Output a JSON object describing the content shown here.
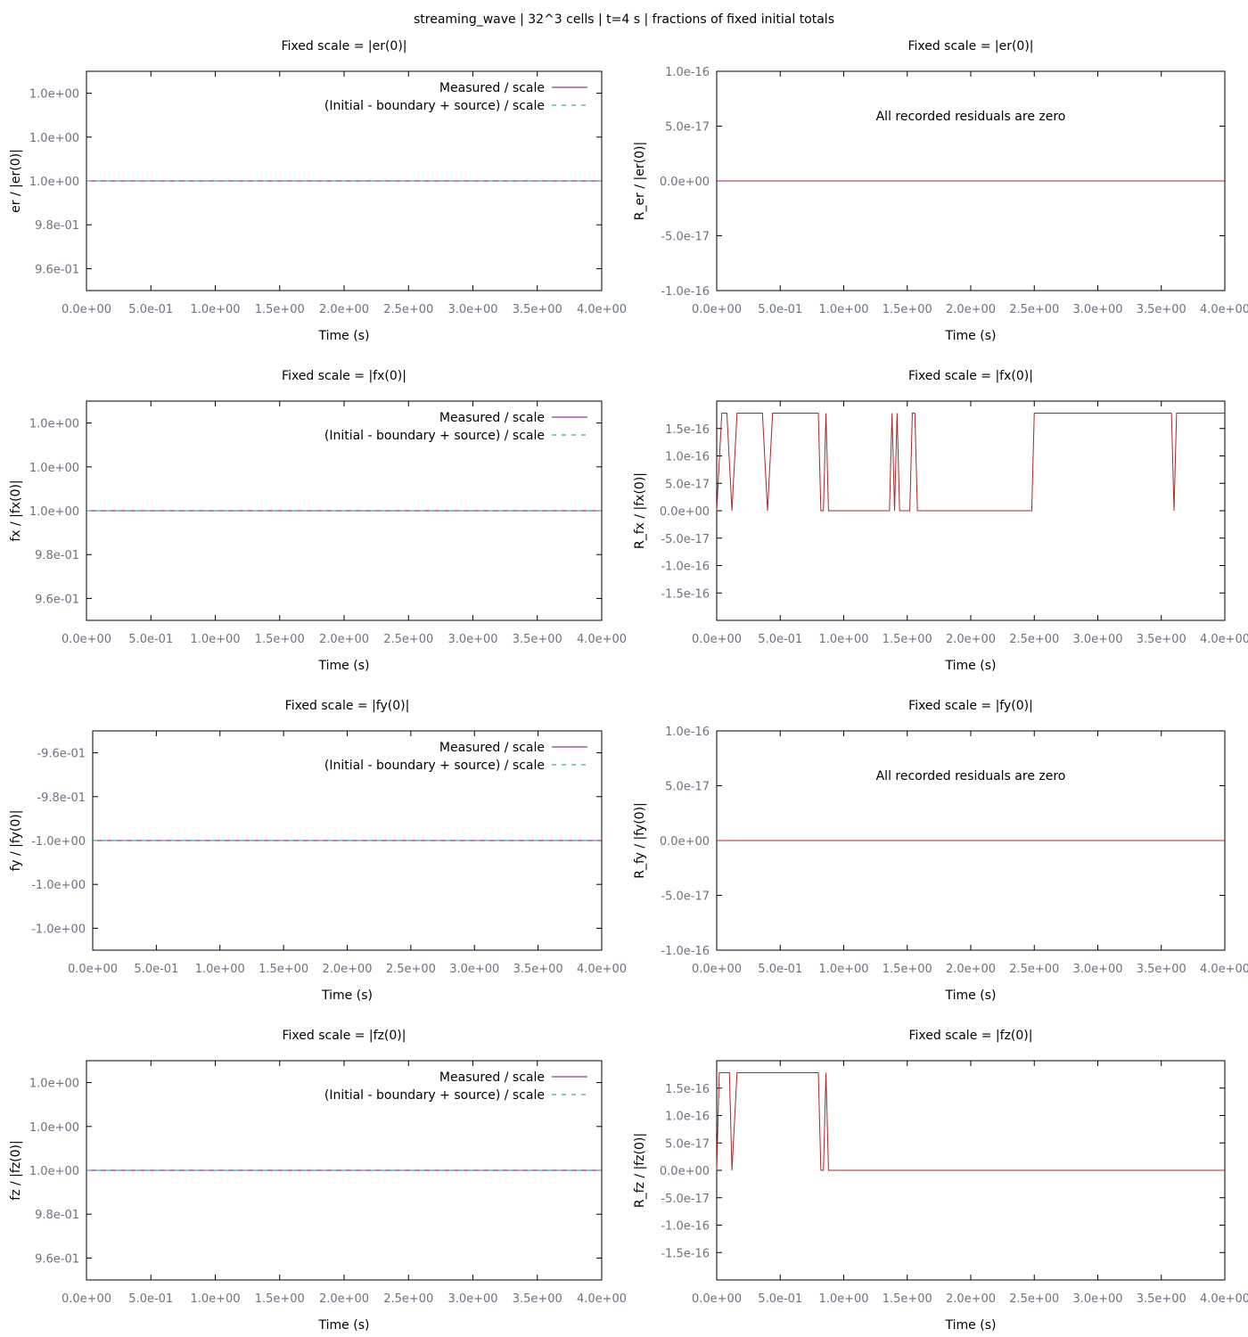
{
  "suptitle": "streaming_wave | 32^3 cells | t=4 s | fractions of fixed initial totals",
  "colors": {
    "measured": "#800080",
    "expected": "#009e73",
    "residual": "#a52a2a",
    "frame": "#000000",
    "tick_text": "#6b7280"
  },
  "chart_data": [
    {
      "type": "line",
      "title": "Fixed scale = |er(0)|",
      "xlabel": "Time (s)",
      "ylabel": "er / |er(0)|",
      "xlim": [
        0,
        4
      ],
      "ylim": [
        0.95,
        1.05
      ],
      "x_ticks": [
        "0.0e+00",
        "5.0e-01",
        "1.0e+00",
        "1.5e+00",
        "2.0e+00",
        "2.5e+00",
        "3.0e+00",
        "3.5e+00",
        "4.0e+00"
      ],
      "y_ticks": [
        {
          "value": 1.04,
          "label": "1.0e+00"
        },
        {
          "value": 1.02,
          "label": "1.0e+00"
        },
        {
          "value": 1.0,
          "label": "1.0e+00"
        },
        {
          "value": 0.98,
          "label": "9.8e-01"
        },
        {
          "value": 0.96,
          "label": "9.6e-01"
        }
      ],
      "legend_position": "top-right",
      "series": [
        {
          "name": "Measured / scale",
          "style": "solid",
          "x": [
            0,
            4
          ],
          "y": [
            1,
            1
          ]
        },
        {
          "name": "(Initial - boundary + source) / scale",
          "style": "dashed",
          "x": [
            0,
            4
          ],
          "y": [
            1,
            1
          ]
        }
      ]
    },
    {
      "type": "line",
      "title": "Fixed scale = |er(0)|",
      "xlabel": "Time (s)",
      "ylabel": "R_er / |er(0)|",
      "xlim": [
        0,
        4
      ],
      "ylim": [
        -1e-16,
        1e-16
      ],
      "x_ticks": [
        "0.0e+00",
        "5.0e-01",
        "1.0e+00",
        "1.5e+00",
        "2.0e+00",
        "2.5e+00",
        "3.0e+00",
        "3.5e+00",
        "4.0e+00"
      ],
      "y_ticks": [
        {
          "value": 1e-16,
          "label": "1.0e-16"
        },
        {
          "value": 5e-17,
          "label": "5.0e-17"
        },
        {
          "value": 0,
          "label": "0.0e+00"
        },
        {
          "value": -5e-17,
          "label": "-5.0e-17"
        },
        {
          "value": -1e-16,
          "label": "-1.0e-16"
        }
      ],
      "annotation": "All recorded residuals are zero",
      "series": [
        {
          "style": "residual",
          "x": [
            0,
            4
          ],
          "y": [
            0,
            0
          ]
        }
      ]
    },
    {
      "type": "line",
      "title": "Fixed scale = |fx(0)|",
      "xlabel": "Time (s)",
      "ylabel": "fx / |fx(0)|",
      "xlim": [
        0,
        4
      ],
      "ylim": [
        0.95,
        1.05
      ],
      "x_ticks": [
        "0.0e+00",
        "5.0e-01",
        "1.0e+00",
        "1.5e+00",
        "2.0e+00",
        "2.5e+00",
        "3.0e+00",
        "3.5e+00",
        "4.0e+00"
      ],
      "y_ticks": [
        {
          "value": 1.04,
          "label": "1.0e+00"
        },
        {
          "value": 1.02,
          "label": "1.0e+00"
        },
        {
          "value": 1.0,
          "label": "1.0e+00"
        },
        {
          "value": 0.98,
          "label": "9.8e-01"
        },
        {
          "value": 0.96,
          "label": "9.6e-01"
        }
      ],
      "legend_position": "top-right",
      "series": [
        {
          "name": "Measured / scale",
          "style": "solid",
          "x": [
            0,
            4
          ],
          "y": [
            1,
            1
          ]
        },
        {
          "name": "(Initial - boundary + source) / scale",
          "style": "dashed",
          "x": [
            0,
            4
          ],
          "y": [
            1,
            1
          ]
        }
      ]
    },
    {
      "type": "line",
      "title": "Fixed scale = |fx(0)|",
      "xlabel": "Time (s)",
      "ylabel": "R_fx / |fx(0)|",
      "xlim": [
        0,
        4
      ],
      "ylim": [
        -2e-16,
        2e-16
      ],
      "x_ticks": [
        "0.0e+00",
        "5.0e-01",
        "1.0e+00",
        "1.5e+00",
        "2.0e+00",
        "2.5e+00",
        "3.0e+00",
        "3.5e+00",
        "4.0e+00"
      ],
      "y_ticks": [
        {
          "value": 1.5e-16,
          "label": "1.5e-16"
        },
        {
          "value": 1e-16,
          "label": "1.0e-16"
        },
        {
          "value": 5e-17,
          "label": "5.0e-17"
        },
        {
          "value": 0,
          "label": "0.0e+00"
        },
        {
          "value": -5e-17,
          "label": "-5.0e-17"
        },
        {
          "value": -1e-16,
          "label": "-1.0e-16"
        },
        {
          "value": -1.5e-16,
          "label": "-1.5e-16"
        }
      ],
      "series": [
        {
          "style": "residual",
          "x": [
            0,
            0.04,
            0.08,
            0.12,
            0.16,
            0.2,
            0.36,
            0.4,
            0.44,
            0.8,
            0.82,
            0.84,
            0.86,
            0.88,
            0.92,
            1.36,
            1.38,
            1.4,
            1.42,
            1.44,
            1.46,
            1.52,
            1.54,
            1.56,
            1.58,
            1.6,
            2.48,
            2.5,
            3.58,
            3.6,
            3.62,
            3.64,
            4.0
          ],
          "y": [
            0,
            1.78e-16,
            1.78e-16,
            0,
            1.78e-16,
            1.78e-16,
            1.78e-16,
            0,
            1.78e-16,
            1.78e-16,
            0,
            0,
            1.78e-16,
            0,
            0,
            0,
            1.78e-16,
            0,
            1.78e-16,
            0,
            0,
            0,
            1.78e-16,
            1.78e-16,
            0,
            0,
            0,
            1.78e-16,
            1.78e-16,
            0,
            1.78e-16,
            1.78e-16,
            1.78e-16
          ]
        }
      ]
    },
    {
      "type": "line",
      "title": "Fixed scale = |fy(0)|",
      "xlabel": "Time (s)",
      "ylabel": "fy / |fy(0)|",
      "xlim": [
        0,
        4
      ],
      "ylim": [
        -1.05,
        -0.95
      ],
      "x_ticks": [
        "0.0e+00",
        "5.0e-01",
        "1.0e+00",
        "1.5e+00",
        "2.0e+00",
        "2.5e+00",
        "3.0e+00",
        "3.5e+00",
        "4.0e+00"
      ],
      "y_ticks": [
        {
          "value": -0.96,
          "label": "-9.6e-01"
        },
        {
          "value": -0.98,
          "label": "-9.8e-01"
        },
        {
          "value": -1.0,
          "label": "-1.0e+00"
        },
        {
          "value": -1.02,
          "label": "-1.0e+00"
        },
        {
          "value": -1.04,
          "label": "-1.0e+00"
        }
      ],
      "legend_position": "top-right",
      "series": [
        {
          "name": "Measured / scale",
          "style": "solid",
          "x": [
            0,
            4
          ],
          "y": [
            -1,
            -1
          ]
        },
        {
          "name": "(Initial - boundary + source) / scale",
          "style": "dashed",
          "x": [
            0,
            4
          ],
          "y": [
            -1,
            -1
          ]
        }
      ]
    },
    {
      "type": "line",
      "title": "Fixed scale = |fy(0)|",
      "xlabel": "Time (s)",
      "ylabel": "R_fy / |fy(0)|",
      "xlim": [
        0,
        4
      ],
      "ylim": [
        -1e-16,
        1e-16
      ],
      "x_ticks": [
        "0.0e+00",
        "5.0e-01",
        "1.0e+00",
        "1.5e+00",
        "2.0e+00",
        "2.5e+00",
        "3.0e+00",
        "3.5e+00",
        "4.0e+00"
      ],
      "y_ticks": [
        {
          "value": 1e-16,
          "label": "1.0e-16"
        },
        {
          "value": 5e-17,
          "label": "5.0e-17"
        },
        {
          "value": 0,
          "label": "0.0e+00"
        },
        {
          "value": -5e-17,
          "label": "-5.0e-17"
        },
        {
          "value": -1e-16,
          "label": "-1.0e-16"
        }
      ],
      "annotation": "All recorded residuals are zero",
      "series": [
        {
          "style": "residual",
          "x": [
            0,
            4
          ],
          "y": [
            0,
            0
          ]
        }
      ]
    },
    {
      "type": "line",
      "title": "Fixed scale = |fz(0)|",
      "xlabel": "Time (s)",
      "ylabel": "fz / |fz(0)|",
      "xlim": [
        0,
        4
      ],
      "ylim": [
        0.95,
        1.05
      ],
      "x_ticks": [
        "0.0e+00",
        "5.0e-01",
        "1.0e+00",
        "1.5e+00",
        "2.0e+00",
        "2.5e+00",
        "3.0e+00",
        "3.5e+00",
        "4.0e+00"
      ],
      "y_ticks": [
        {
          "value": 1.04,
          "label": "1.0e+00"
        },
        {
          "value": 1.02,
          "label": "1.0e+00"
        },
        {
          "value": 1.0,
          "label": "1.0e+00"
        },
        {
          "value": 0.98,
          "label": "9.8e-01"
        },
        {
          "value": 0.96,
          "label": "9.6e-01"
        }
      ],
      "legend_position": "top-right",
      "series": [
        {
          "name": "Measured / scale",
          "style": "solid",
          "x": [
            0,
            4
          ],
          "y": [
            1,
            1
          ]
        },
        {
          "name": "(Initial - boundary + source) / scale",
          "style": "dashed",
          "x": [
            0,
            4
          ],
          "y": [
            1,
            1
          ]
        }
      ]
    },
    {
      "type": "line",
      "title": "Fixed scale = |fz(0)|",
      "xlabel": "Time (s)",
      "ylabel": "R_fz / |fz(0)|",
      "xlim": [
        0,
        4
      ],
      "ylim": [
        -2e-16,
        2e-16
      ],
      "x_ticks": [
        "0.0e+00",
        "5.0e-01",
        "1.0e+00",
        "1.5e+00",
        "2.0e+00",
        "2.5e+00",
        "3.0e+00",
        "3.5e+00",
        "4.0e+00"
      ],
      "y_ticks": [
        {
          "value": 1.5e-16,
          "label": "1.5e-16"
        },
        {
          "value": 1e-16,
          "label": "1.0e-16"
        },
        {
          "value": 5e-17,
          "label": "5.0e-17"
        },
        {
          "value": 0,
          "label": "0.0e+00"
        },
        {
          "value": -5e-17,
          "label": "-5.0e-17"
        },
        {
          "value": -1e-16,
          "label": "-1.0e-16"
        },
        {
          "value": -1.5e-16,
          "label": "-1.5e-16"
        }
      ],
      "series": [
        {
          "style": "residual",
          "x": [
            0,
            0.02,
            0.1,
            0.12,
            0.16,
            0.8,
            0.82,
            0.84,
            0.86,
            0.88,
            0.92,
            4.0
          ],
          "y": [
            0,
            1.78e-16,
            1.78e-16,
            0,
            1.78e-16,
            1.78e-16,
            0,
            0,
            1.78e-16,
            0,
            0,
            0
          ]
        }
      ]
    }
  ]
}
